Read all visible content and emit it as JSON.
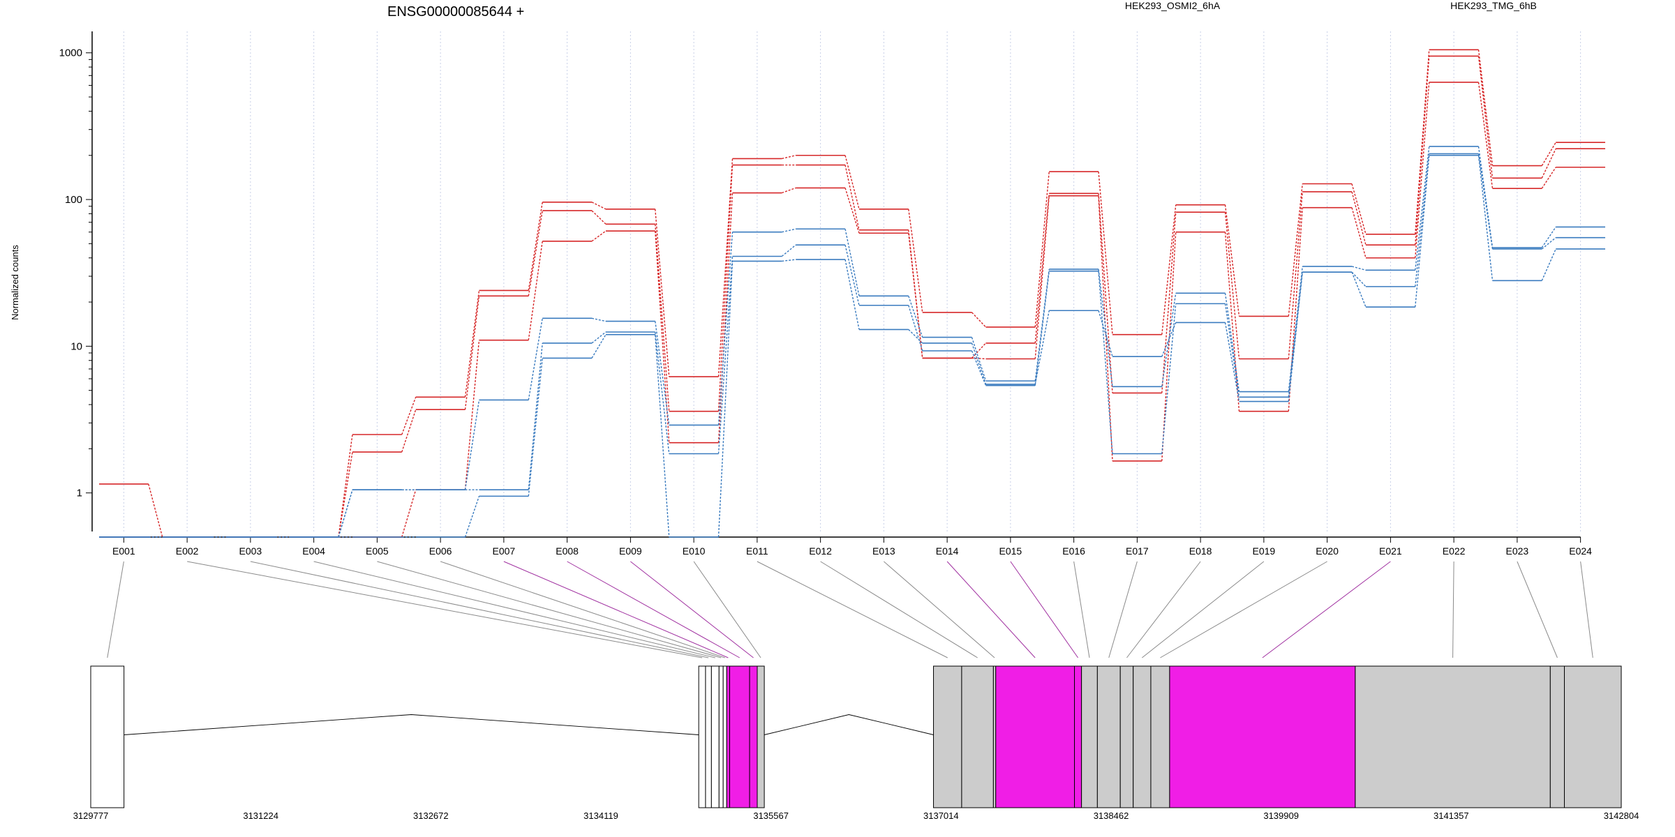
{
  "chart_data": {
    "type": "line",
    "title": "ENSG00000085644 +",
    "ylabel": "Normalized counts",
    "xlabel": "",
    "y_scale": "log",
    "ylim": [
      0.5,
      1400
    ],
    "y_ticks": [
      1,
      10,
      100,
      1000
    ],
    "y_tick_labels": [
      "1",
      "10",
      "100",
      "1000"
    ],
    "grid": "vertical dotted",
    "legend_position": "top",
    "legend": [
      {
        "label": "HEK293_OSMI2_6hA",
        "color": "#d62728"
      },
      {
        "label": "HEK293_TMG_6hB",
        "color": "#3a7bbf"
      }
    ],
    "categories": [
      "E001",
      "E002",
      "E003",
      "E004",
      "E005",
      "E006",
      "E007",
      "E008",
      "E009",
      "E010",
      "E011",
      "E012",
      "E013",
      "E014",
      "E015",
      "E016",
      "E017",
      "E018",
      "E019",
      "E020",
      "E021",
      "E022",
      "E023",
      "E024"
    ],
    "floor_value": 0.5,
    "series": [
      {
        "group": "HEK293_OSMI2_6hA",
        "color": "#d62728",
        "values": [
          1.15,
          0.5,
          0.5,
          0.5,
          2.5,
          4.5,
          24,
          96,
          86,
          6.2,
          190,
          200,
          86,
          17,
          13.5,
          155,
          12,
          92,
          16,
          128,
          58,
          1050,
          170,
          245
        ]
      },
      {
        "group": "HEK293_OSMI2_6hA",
        "color": "#d62728",
        "values": [
          0.5,
          0.5,
          0.5,
          0.5,
          1.9,
          3.7,
          22,
          84,
          68,
          3.6,
          172,
          172,
          62,
          8.3,
          10.5,
          110,
          4.8,
          82,
          8.2,
          113,
          49,
          950,
          140,
          222
        ]
      },
      {
        "group": "HEK293_OSMI2_6hA",
        "color": "#d62728",
        "values": [
          0.5,
          0.5,
          0.5,
          0.5,
          0.5,
          1.05,
          11,
          52,
          61,
          2.2,
          111,
          120,
          59,
          8.3,
          8.2,
          106,
          1.65,
          60,
          3.6,
          88,
          40,
          630,
          119,
          166
        ]
      },
      {
        "group": "HEK293_TMG_6hB",
        "color": "#3a7bbf",
        "values": [
          0.5,
          0.5,
          0.5,
          0.5,
          1.05,
          1.05,
          4.3,
          15.5,
          14.8,
          2.9,
          60,
          63,
          22,
          11.5,
          5.8,
          33.5,
          5.3,
          23,
          4.9,
          35,
          33,
          230,
          47,
          65
        ]
      },
      {
        "group": "HEK293_TMG_6hB",
        "color": "#3a7bbf",
        "values": [
          0.5,
          0.5,
          0.5,
          0.5,
          1.05,
          1.05,
          1.05,
          10.5,
          12.5,
          1.85,
          41,
          49,
          19,
          9.3,
          5.4,
          32.5,
          1.85,
          19.5,
          4.5,
          32,
          25.5,
          205,
          46,
          55
        ]
      },
      {
        "group": "HEK293_TMG_6hB",
        "color": "#3a7bbf",
        "values": [
          0.5,
          0.5,
          0.5,
          0.5,
          0.5,
          0.5,
          0.95,
          8.3,
          12,
          0.5,
          38,
          39,
          13,
          10.5,
          5.5,
          17.5,
          8.5,
          14.5,
          4.2,
          32,
          18.5,
          200,
          28,
          46
        ]
      }
    ],
    "gene_model": {
      "axis_ticks": [
        "3129777",
        "3131224",
        "3132672",
        "3134119",
        "3135567",
        "3137014",
        "3138462",
        "3139909",
        "3141357",
        "3142804"
      ],
      "axis_min": 3129777,
      "axis_max": 3142804,
      "exon_colors": {
        "normal": "#ffffff",
        "expressed": "#cccccc",
        "significant": "#f01ee6"
      },
      "highlight_line_color": "#a030a0",
      "exons": [
        {
          "id": "E001",
          "start": 3129777,
          "end": 3130060,
          "fill": "normal",
          "highlight": false
        },
        {
          "id": "E002",
          "start": 3134952,
          "end": 3135010,
          "fill": "normal",
          "highlight": false
        },
        {
          "id": "E003",
          "start": 3135010,
          "end": 3135060,
          "fill": "normal",
          "highlight": false
        },
        {
          "id": "E004",
          "start": 3135060,
          "end": 3135125,
          "fill": "normal",
          "highlight": false
        },
        {
          "id": "E005",
          "start": 3135125,
          "end": 3135160,
          "fill": "normal",
          "highlight": false
        },
        {
          "id": "E006",
          "start": 3135160,
          "end": 3135190,
          "fill": "normal",
          "highlight": false
        },
        {
          "id": "E007",
          "start": 3135190,
          "end": 3135215,
          "fill": "significant",
          "highlight": true
        },
        {
          "id": "E008",
          "start": 3135215,
          "end": 3135385,
          "fill": "significant",
          "highlight": true
        },
        {
          "id": "E009",
          "start": 3135385,
          "end": 3135450,
          "fill": "significant",
          "highlight": true
        },
        {
          "id": "E010",
          "start": 3135450,
          "end": 3135510,
          "fill": "expressed",
          "highlight": false
        },
        {
          "id": "E011",
          "start": 3136950,
          "end": 3137190,
          "fill": "expressed",
          "highlight": false
        },
        {
          "id": "E012",
          "start": 3137190,
          "end": 3137460,
          "fill": "expressed",
          "highlight": false
        },
        {
          "id": "E013",
          "start": 3137460,
          "end": 3137480,
          "fill": "expressed",
          "highlight": false
        },
        {
          "id": "E014",
          "start": 3137480,
          "end": 3138150,
          "fill": "significant",
          "highlight": true
        },
        {
          "id": "E015",
          "start": 3138150,
          "end": 3138210,
          "fill": "significant",
          "highlight": true
        },
        {
          "id": "E016",
          "start": 3138210,
          "end": 3138345,
          "fill": "expressed",
          "highlight": false
        },
        {
          "id": "E017",
          "start": 3138345,
          "end": 3138540,
          "fill": "expressed",
          "highlight": false
        },
        {
          "id": "E018",
          "start": 3138540,
          "end": 3138650,
          "fill": "expressed",
          "highlight": false
        },
        {
          "id": "E019",
          "start": 3138650,
          "end": 3138800,
          "fill": "expressed",
          "highlight": false
        },
        {
          "id": "E020",
          "start": 3138800,
          "end": 3138960,
          "fill": "expressed",
          "highlight": false
        },
        {
          "id": "E021",
          "start": 3138960,
          "end": 3140540,
          "fill": "significant",
          "highlight": true
        },
        {
          "id": "E022",
          "start": 3140540,
          "end": 3142200,
          "fill": "expressed",
          "highlight": false
        },
        {
          "id": "E023",
          "start": 3142200,
          "end": 3142320,
          "fill": "expressed",
          "highlight": false
        },
        {
          "id": "E024",
          "start": 3142320,
          "end": 3142804,
          "fill": "expressed",
          "highlight": false
        }
      ]
    }
  }
}
